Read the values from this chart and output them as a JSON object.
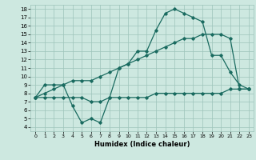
{
  "xlabel": "Humidex (Indice chaleur)",
  "background_color": "#cde8e0",
  "grid_color": "#9dc4ba",
  "line_color": "#1a6b60",
  "xlim": [
    -0.5,
    23.5
  ],
  "ylim": [
    3.5,
    18.5
  ],
  "xticks": [
    0,
    1,
    2,
    3,
    4,
    5,
    6,
    7,
    8,
    9,
    10,
    11,
    12,
    13,
    14,
    15,
    16,
    17,
    18,
    19,
    20,
    21,
    22,
    23
  ],
  "yticks": [
    4,
    5,
    6,
    7,
    8,
    9,
    10,
    11,
    12,
    13,
    14,
    15,
    16,
    17,
    18
  ],
  "line1_x": [
    0,
    1,
    2,
    3,
    4,
    5,
    6,
    7,
    8,
    9,
    10,
    11,
    12,
    13,
    14,
    15,
    16,
    17,
    18,
    19,
    20,
    21,
    22,
    23
  ],
  "line1_y": [
    7.5,
    9.0,
    9.0,
    9.0,
    6.5,
    4.5,
    5.0,
    4.5,
    7.5,
    11.0,
    11.5,
    13.0,
    13.0,
    15.5,
    17.5,
    18.0,
    17.5,
    17.0,
    16.5,
    12.5,
    12.5,
    10.5,
    9.0,
    8.5
  ],
  "line2_x": [
    0,
    1,
    2,
    3,
    4,
    5,
    6,
    7,
    8,
    9,
    10,
    11,
    12,
    13,
    14,
    15,
    16,
    17,
    18,
    19,
    20,
    21,
    22,
    23
  ],
  "line2_y": [
    7.5,
    8.0,
    8.5,
    9.0,
    9.5,
    9.5,
    9.5,
    10.0,
    10.5,
    11.0,
    11.5,
    12.0,
    12.5,
    13.0,
    13.5,
    14.0,
    14.5,
    14.5,
    15.0,
    15.0,
    15.0,
    14.5,
    8.5,
    8.5
  ],
  "line3_x": [
    0,
    1,
    2,
    3,
    4,
    5,
    6,
    7,
    8,
    9,
    10,
    11,
    12,
    13,
    14,
    15,
    16,
    17,
    18,
    19,
    20,
    21,
    22,
    23
  ],
  "line3_y": [
    7.5,
    7.5,
    7.5,
    7.5,
    7.5,
    7.5,
    7.0,
    7.0,
    7.5,
    7.5,
    7.5,
    7.5,
    7.5,
    8.0,
    8.0,
    8.0,
    8.0,
    8.0,
    8.0,
    8.0,
    8.0,
    8.5,
    8.5,
    8.5
  ]
}
